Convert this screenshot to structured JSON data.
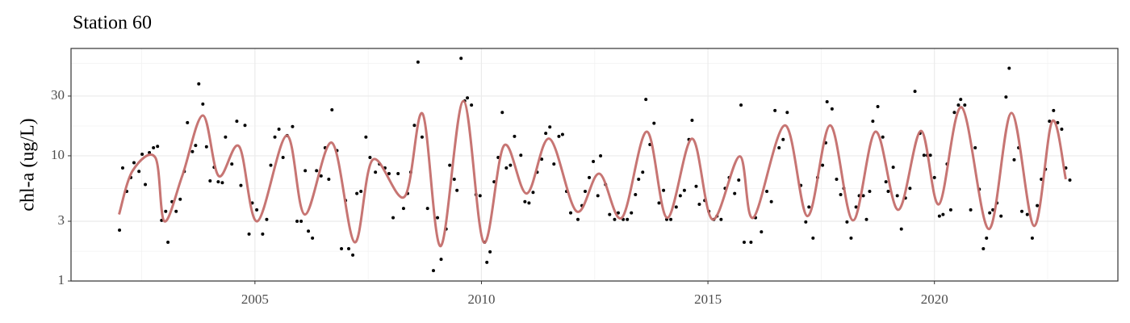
{
  "chart_data": {
    "type": "scatter",
    "title": "Station 60",
    "y_label": "chl-a (ug/L)",
    "xlim": [
      2000.94,
      2024.05
    ],
    "xticks": [
      2005,
      2010,
      2015,
      2020
    ],
    "minor_xticks": [
      2002.5,
      2007.5,
      2012.5,
      2017.5,
      2022.5
    ],
    "ylim": [
      1,
      72
    ],
    "yticks": [
      1,
      3,
      10,
      30
    ],
    "minor_yticks": [
      1.73,
      5.48,
      17.3,
      54.8
    ],
    "log_y": true,
    "grid": true,
    "series": [
      {
        "mark": "point",
        "color": "#000000",
        "x": [
          2002.01,
          2002.08,
          2002.17,
          2002.26,
          2002.33,
          2002.44,
          2002.51,
          2002.58,
          2002.67,
          2002.76,
          2002.85,
          2002.94,
          2003.03,
          2003.08,
          2003.17,
          2003.26,
          2003.35,
          2003.44,
          2003.51,
          2003.62,
          2003.69,
          2003.76,
          2003.85,
          2003.93,
          2004.01,
          2004.1,
          2004.19,
          2004.28,
          2004.35,
          2004.49,
          2004.6,
          2004.69,
          2004.78,
          2004.87,
          2004.94,
          2005.04,
          2005.17,
          2005.26,
          2005.35,
          2005.44,
          2005.53,
          2005.62,
          2005.71,
          2005.83,
          2005.93,
          2006.02,
          2006.11,
          2006.18,
          2006.27,
          2006.36,
          2006.46,
          2006.55,
          2006.63,
          2006.7,
          2006.81,
          2006.91,
          2007.0,
          2007.07,
          2007.16,
          2007.25,
          2007.34,
          2007.45,
          2007.54,
          2007.66,
          2007.75,
          2007.87,
          2007.96,
          2008.05,
          2008.16,
          2008.28,
          2008.37,
          2008.44,
          2008.52,
          2008.6,
          2008.69,
          2008.81,
          2008.94,
          2009.03,
          2009.11,
          2009.22,
          2009.3,
          2009.4,
          2009.46,
          2009.55,
          2009.63,
          2009.69,
          2009.78,
          2009.88,
          2009.97,
          2010.07,
          2010.12,
          2010.19,
          2010.28,
          2010.37,
          2010.46,
          2010.55,
          2010.64,
          2010.73,
          2010.87,
          2010.96,
          2011.05,
          2011.14,
          2011.23,
          2011.33,
          2011.42,
          2011.51,
          2011.6,
          2011.71,
          2011.79,
          2011.88,
          2011.97,
          2012.13,
          2012.22,
          2012.29,
          2012.38,
          2012.47,
          2012.57,
          2012.63,
          2012.74,
          2012.83,
          2012.94,
          2013.02,
          2013.13,
          2013.22,
          2013.31,
          2013.4,
          2013.47,
          2013.56,
          2013.63,
          2013.72,
          2013.81,
          2013.92,
          2014.02,
          2014.09,
          2014.18,
          2014.3,
          2014.39,
          2014.48,
          2014.58,
          2014.65,
          2014.74,
          2014.81,
          2014.93,
          2015.02,
          2015.13,
          2015.2,
          2015.29,
          2015.38,
          2015.47,
          2015.59,
          2015.68,
          2015.73,
          2015.8,
          2015.95,
          2016.05,
          2016.18,
          2016.3,
          2016.4,
          2016.48,
          2016.57,
          2016.66,
          2016.75,
          2017.05,
          2017.16,
          2017.23,
          2017.32,
          2017.42,
          2017.53,
          2017.6,
          2017.63,
          2017.74,
          2017.84,
          2017.93,
          2018.0,
          2018.07,
          2018.16,
          2018.27,
          2018.34,
          2018.43,
          2018.5,
          2018.57,
          2018.64,
          2018.75,
          2018.86,
          2018.93,
          2018.98,
          2019.09,
          2019.18,
          2019.27,
          2019.36,
          2019.46,
          2019.57,
          2019.68,
          2019.77,
          2019.84,
          2019.91,
          2020.0,
          2020.11,
          2020.19,
          2020.28,
          2020.36,
          2020.44,
          2020.53,
          2020.58,
          2020.67,
          2020.8,
          2020.9,
          2020.99,
          2021.08,
          2021.15,
          2021.22,
          2021.29,
          2021.38,
          2021.47,
          2021.58,
          2021.65,
          2021.76,
          2021.86,
          2021.93,
          2022.05,
          2022.16,
          2022.27,
          2022.36,
          2022.45,
          2022.54,
          2022.63,
          2022.72,
          2022.81,
          2022.9,
          2022.99
        ],
        "values": [
          2.55,
          8.0,
          5.2,
          6.7,
          8.8,
          7.5,
          10.3,
          5.9,
          10.6,
          11.6,
          11.9,
          3.05,
          3.6,
          2.04,
          4.3,
          3.6,
          4.5,
          7.5,
          18.4,
          10.8,
          12.1,
          37.5,
          25.9,
          11.8,
          6.3,
          8.1,
          6.2,
          6.1,
          14.1,
          8.6,
          18.9,
          5.8,
          17.5,
          2.37,
          4.2,
          3.7,
          2.37,
          3.1,
          8.4,
          14.1,
          16.3,
          9.7,
          14.5,
          17.1,
          3.0,
          3.0,
          7.6,
          2.5,
          2.2,
          7.6,
          6.9,
          11.6,
          6.5,
          23.3,
          11.0,
          1.81,
          4.4,
          1.81,
          1.61,
          5.0,
          5.2,
          14.1,
          9.7,
          7.4,
          8.6,
          8.0,
          7.2,
          3.2,
          7.2,
          3.8,
          5.0,
          7.4,
          17.5,
          56,
          14.1,
          3.8,
          1.21,
          3.2,
          1.49,
          2.6,
          8.4,
          6.5,
          5.3,
          60,
          27.4,
          29,
          25.4,
          4.9,
          4.8,
          2.04,
          1.41,
          1.71,
          6.2,
          9.7,
          22.2,
          8.0,
          8.4,
          14.3,
          10.1,
          4.3,
          4.2,
          5.1,
          7.4,
          9.4,
          15.1,
          17,
          8.6,
          14.3,
          14.8,
          5.2,
          3.5,
          3.1,
          4.0,
          5.2,
          6.7,
          9.0,
          4.8,
          10,
          5.9,
          3.4,
          3.1,
          3.5,
          3.1,
          3.1,
          3.5,
          4.9,
          6.5,
          7.4,
          28.2,
          12.3,
          18.2,
          4.2,
          5.3,
          3.1,
          3.1,
          3.9,
          4.8,
          5.3,
          13.5,
          19.2,
          5.7,
          4.1,
          4.4,
          3.6,
          3.1,
          3.3,
          3.1,
          5.5,
          6.7,
          5.0,
          6.4,
          25.4,
          2.04,
          2.04,
          3.2,
          2.47,
          5.2,
          4.3,
          23,
          11.6,
          13.5,
          22.2,
          5.8,
          2.96,
          3.9,
          2.2,
          6.7,
          8.4,
          12.7,
          27,
          23.7,
          6.5,
          4.9,
          5.5,
          2.96,
          2.2,
          3.9,
          4.8,
          4.8,
          3.1,
          5.2,
          18.9,
          24.7,
          14.1,
          6.2,
          5.2,
          8.1,
          4.8,
          2.6,
          4.6,
          5.5,
          32.7,
          15.1,
          10.1,
          10.1,
          10.1,
          6.7,
          3.3,
          3.4,
          8.6,
          3.7,
          22.2,
          25.4,
          28.2,
          25.4,
          3.7,
          11.6,
          5.4,
          1.81,
          2.2,
          3.5,
          3.7,
          4.2,
          3.3,
          29.5,
          50,
          9.3,
          11.6,
          3.6,
          3.4,
          2.2,
          4.0,
          6.5,
          7.8,
          18.9,
          23,
          18.4,
          16.3,
          8.0,
          6.4
        ]
      },
      {
        "mark": "line",
        "color": "#c46e6b",
        "x": [
          2002.0,
          2002.3,
          2002.8,
          2003.0,
          2003.4,
          2003.85,
          2004.2,
          2004.65,
          2005.05,
          2005.7,
          2006.1,
          2006.7,
          2007.2,
          2007.6,
          2008.3,
          2008.7,
          2009.1,
          2009.6,
          2010.05,
          2010.5,
          2011.0,
          2011.5,
          2012.1,
          2012.6,
          2013.1,
          2013.65,
          2014.1,
          2014.65,
          2015.1,
          2015.7,
          2016.0,
          2016.7,
          2017.2,
          2017.7,
          2018.2,
          2018.7,
          2019.2,
          2019.7,
          2020.1,
          2020.6,
          2021.2,
          2021.7,
          2022.2,
          2022.6,
          2022.9
        ],
        "values": [
          3.4,
          7.6,
          9.7,
          3.0,
          7.0,
          21,
          6.9,
          11.9,
          3.0,
          14.5,
          3.4,
          12.7,
          2.04,
          9.3,
          4.7,
          21.7,
          1.9,
          27.4,
          2.04,
          12.1,
          5.0,
          13.7,
          3.6,
          7.2,
          3.2,
          15.6,
          3.2,
          13.7,
          3.1,
          9.9,
          3.2,
          17.5,
          3.3,
          17.5,
          3.05,
          15.6,
          3.7,
          15.8,
          4.1,
          24.4,
          2.6,
          22,
          2.75,
          18.9,
          6.5
        ]
      }
    ]
  }
}
